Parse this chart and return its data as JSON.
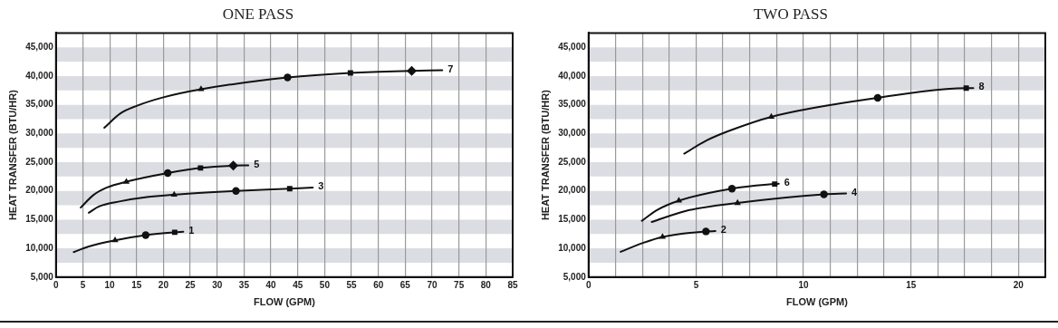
{
  "chart_data": [
    {
      "type": "line",
      "title": "ONE PASS",
      "xlabel": "FLOW (GPM)",
      "ylabel": "HEAT TRANSFER (BTU/HR)",
      "xlim": [
        0,
        85
      ],
      "ylim": [
        5000,
        47500
      ],
      "xticks": [
        0,
        5,
        10,
        15,
        20,
        25,
        30,
        35,
        40,
        45,
        50,
        55,
        60,
        65,
        70,
        75,
        80,
        85
      ],
      "yticks": [
        {
          "value": 5000,
          "label": "5,000"
        },
        {
          "value": 10000,
          "label": "10,000"
        },
        {
          "value": 15000,
          "label": "15,000"
        },
        {
          "value": 20000,
          "label": "20,000"
        },
        {
          "value": 25000,
          "label": "25,000"
        },
        {
          "value": 30000,
          "label": "30,000"
        },
        {
          "value": 35000,
          "label": "35,000"
        },
        {
          "value": 40000,
          "label": "40,000"
        },
        {
          "value": 45000,
          "label": "45,000"
        }
      ],
      "grid": "x",
      "marker": "none",
      "bands": [
        {
          "axis": "y",
          "from": 7500,
          "to": 10000,
          "color": "#dcdde3"
        },
        {
          "axis": "y",
          "from": 12500,
          "to": 15000,
          "color": "#dcdde3"
        },
        {
          "axis": "y",
          "from": 17500,
          "to": 20000,
          "color": "#dcdde3"
        },
        {
          "axis": "y",
          "from": 22500,
          "to": 25000,
          "color": "#dcdde3"
        },
        {
          "axis": "y",
          "from": 27500,
          "to": 30000,
          "color": "#dcdde3"
        },
        {
          "axis": "y",
          "from": 32500,
          "to": 35000,
          "color": "#dcdde3"
        },
        {
          "axis": "y",
          "from": 37500,
          "to": 40000,
          "color": "#dcdde3"
        },
        {
          "axis": "y",
          "from": 42500,
          "to": 45000,
          "color": "#dcdde3"
        }
      ],
      "series": [
        {
          "name": "7",
          "color": "#111111",
          "x": [
            9.0,
            12,
            15,
            20,
            27.0,
            43.1,
            54.8,
            66.2,
            71.9
          ],
          "values": [
            31000,
            33500,
            34800,
            36300,
            37700,
            39750,
            40550,
            40900,
            41000
          ]
        },
        {
          "name": "5",
          "color": "#111111",
          "x": [
            4.6,
            7,
            9.5,
            13.1,
            20.8,
            26.9,
            33.0,
            35.8
          ],
          "values": [
            17100,
            19300,
            20600,
            21600,
            23100,
            24000,
            24400,
            24450
          ]
        },
        {
          "name": "3",
          "color": "#111111",
          "x": [
            6.1,
            8,
            12,
            16,
            22.0,
            33.5,
            43.5,
            47.8
          ],
          "values": [
            16200,
            17300,
            18200,
            18800,
            19350,
            20000,
            20400,
            20600
          ]
        },
        {
          "name": "1",
          "color": "#111111",
          "x": [
            3.3,
            6,
            11.0,
            16.7,
            22.1,
            23.7
          ],
          "values": [
            9350,
            10300,
            11400,
            12300,
            12800,
            12900
          ]
        },
        {
          "type": "scatter",
          "marker": "triangle",
          "color": "#111111",
          "x": [
            27.0,
            13.1,
            22.0,
            11.0
          ],
          "values": [
            37700,
            21600,
            19350,
            11400
          ]
        },
        {
          "type": "scatter",
          "marker": "circle",
          "color": "#111111",
          "x": [
            43.1,
            20.8,
            33.5,
            16.7
          ],
          "values": [
            39750,
            23100,
            20000,
            12300
          ]
        },
        {
          "type": "scatter",
          "marker": "square",
          "color": "#111111",
          "x": [
            54.8,
            26.9,
            43.5,
            22.1
          ],
          "values": [
            40550,
            24000,
            20400,
            12800
          ]
        },
        {
          "type": "scatter",
          "marker": "diamond",
          "color": "#111111",
          "x": [
            66.2,
            33.0
          ],
          "values": [
            40900,
            24400
          ]
        }
      ]
    },
    {
      "type": "line",
      "title": "TWO PASS",
      "xlabel": "FLOW (GPM)",
      "ylabel": "HEAT TRANSFER (BTU/HR)",
      "xlim": [
        0,
        21.25
      ],
      "ylim": [
        5000,
        47500
      ],
      "xticks": [
        0,
        {
          "value": 1.25,
          "label": null
        },
        {
          "value": 2.5,
          "label": null
        },
        {
          "value": 3.75,
          "label": null
        },
        5,
        {
          "value": 6.25,
          "label": null
        },
        {
          "value": 7.5,
          "label": null
        },
        {
          "value": 8.75,
          "label": null
        },
        10,
        {
          "value": 11.25,
          "label": null
        },
        {
          "value": 12.5,
          "label": null
        },
        {
          "value": 13.75,
          "label": null
        },
        15,
        {
          "value": 16.25,
          "label": null
        },
        {
          "value": 17.5,
          "label": null
        },
        {
          "value": 18.75,
          "label": null
        },
        20
      ],
      "yticks": [
        {
          "value": 5000,
          "label": "5,000"
        },
        {
          "value": 10000,
          "label": "10,000"
        },
        {
          "value": 15000,
          "label": "15,000"
        },
        {
          "value": 20000,
          "label": "20,000"
        },
        {
          "value": 25000,
          "label": "25,000"
        },
        {
          "value": 30000,
          "label": "30,000"
        },
        {
          "value": 35000,
          "label": "35,000"
        },
        {
          "value": 40000,
          "label": "40,000"
        },
        {
          "value": 45000,
          "label": "45,000"
        }
      ],
      "grid": "x",
      "marker": "none",
      "bands": [
        {
          "axis": "y",
          "from": 7500,
          "to": 10000,
          "color": "#dcdde3"
        },
        {
          "axis": "y",
          "from": 12500,
          "to": 15000,
          "color": "#dcdde3"
        },
        {
          "axis": "y",
          "from": 17500,
          "to": 20000,
          "color": "#dcdde3"
        },
        {
          "axis": "y",
          "from": 22500,
          "to": 25000,
          "color": "#dcdde3"
        },
        {
          "axis": "y",
          "from": 27500,
          "to": 30000,
          "color": "#dcdde3"
        },
        {
          "axis": "y",
          "from": 32500,
          "to": 35000,
          "color": "#dcdde3"
        },
        {
          "axis": "y",
          "from": 37500,
          "to": 40000,
          "color": "#dcdde3"
        },
        {
          "axis": "y",
          "from": 42500,
          "to": 45000,
          "color": "#dcdde3"
        }
      ],
      "series": [
        {
          "name": "8",
          "color": "#111111",
          "x": [
            4.45,
            5.5,
            6.5,
            8.5,
            13.45,
            17.57,
            17.9
          ],
          "values": [
            26500,
            28800,
            30400,
            32900,
            36200,
            37900,
            37900
          ]
        },
        {
          "name": "6",
          "color": "#111111",
          "x": [
            2.48,
            3.2,
            4.2,
            6.67,
            8.66,
            8.85
          ],
          "values": [
            14800,
            16700,
            18300,
            20400,
            21200,
            21250
          ]
        },
        {
          "name": "4",
          "color": "#111111",
          "x": [
            2.94,
            4.5,
            6.93,
            10.95,
            11.98
          ],
          "values": [
            14600,
            16500,
            17900,
            19400,
            19550
          ]
        },
        {
          "name": "2",
          "color": "#111111",
          "x": [
            1.49,
            2.5,
            3.44,
            5.46,
            5.9
          ],
          "values": [
            9400,
            10900,
            12000,
            12950,
            13000
          ]
        },
        {
          "type": "scatter",
          "marker": "triangle",
          "color": "#111111",
          "x": [
            8.5,
            4.2,
            6.93,
            3.44
          ],
          "values": [
            32900,
            18300,
            17900,
            12000
          ]
        },
        {
          "type": "scatter",
          "marker": "circle",
          "color": "#111111",
          "x": [
            13.45,
            6.67,
            10.95,
            5.46
          ],
          "values": [
            36200,
            20400,
            19400,
            12950
          ]
        },
        {
          "type": "scatter",
          "marker": "square",
          "color": "#111111",
          "x": [
            17.57,
            8.66
          ],
          "values": [
            37900,
            21200
          ]
        }
      ]
    }
  ]
}
